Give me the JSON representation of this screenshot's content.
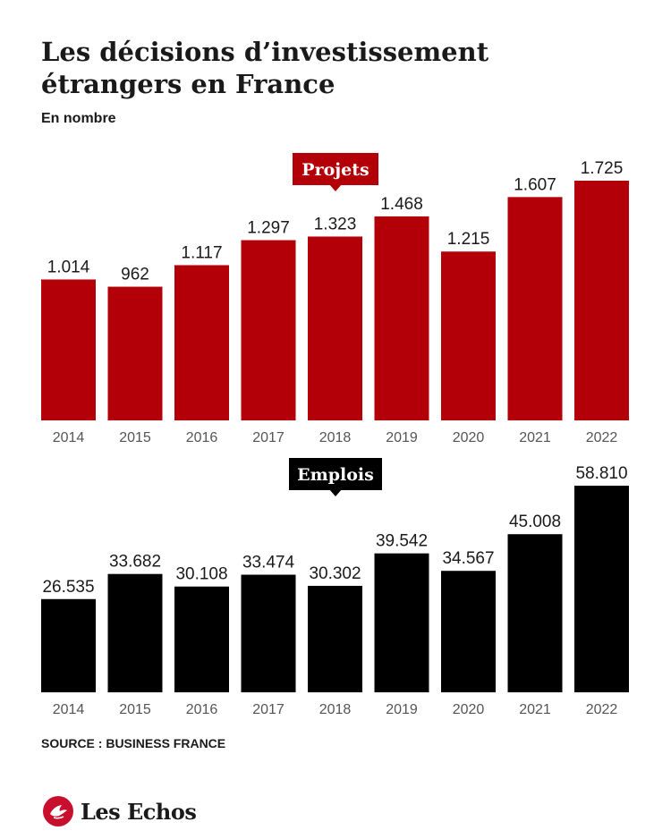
{
  "title": "Les décisions d’investissement étrangers en France",
  "subtitle": "En nombre",
  "source": "SOURCE : BUSINESS FRANCE",
  "logo": {
    "text": "Les Echos",
    "icon": "les-echos-logo-icon",
    "color": "#c8102e"
  },
  "colors": {
    "projets": "#b30008",
    "emplois": "#000000",
    "axis_text": "#555555",
    "value_text": "#1a1a1a"
  },
  "chart_data": [
    {
      "type": "bar",
      "title": "Projets",
      "categories": [
        "2014",
        "2015",
        "2016",
        "2017",
        "2018",
        "2019",
        "2020",
        "2021",
        "2022"
      ],
      "values": [
        1014,
        962,
        1117,
        1297,
        1323,
        1468,
        1215,
        1607,
        1725
      ],
      "value_labels": [
        "1.014",
        "962",
        "1.117",
        "1.297",
        "1.323",
        "1.468",
        "1.215",
        "1.607",
        "1.725"
      ],
      "ylim": [
        0,
        1725
      ],
      "grid": false,
      "color": "#b30008"
    },
    {
      "type": "bar",
      "title": "Emplois",
      "categories": [
        "2014",
        "2015",
        "2016",
        "2017",
        "2018",
        "2019",
        "2020",
        "2021",
        "2022"
      ],
      "values": [
        26535,
        33682,
        30108,
        33474,
        30302,
        39542,
        34567,
        45008,
        58810
      ],
      "value_labels": [
        "26.535",
        "33.682",
        "30.108",
        "33.474",
        "30.302",
        "39.542",
        "34.567",
        "45.008",
        "58.810"
      ],
      "ylim": [
        0,
        58810
      ],
      "grid": false,
      "color": "#000000"
    }
  ]
}
